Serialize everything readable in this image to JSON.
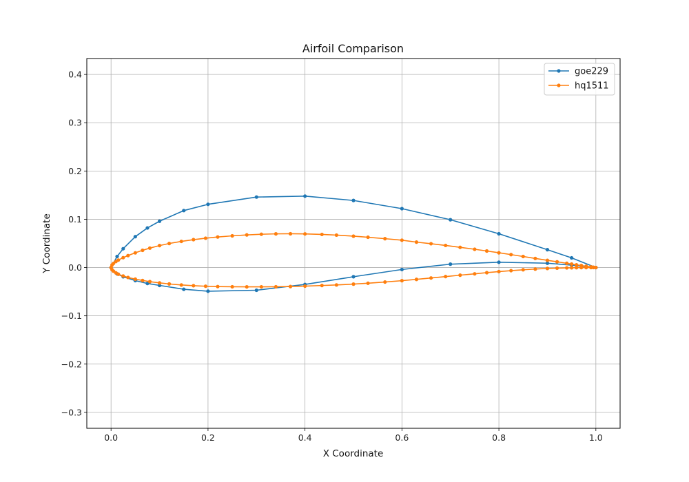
{
  "chart_data": {
    "type": "line",
    "title": "Airfoil Comparison",
    "xlabel": "X Coordinate",
    "ylabel": "Y Coordinate",
    "xlim": [
      -0.05,
      1.05
    ],
    "ylim": [
      -0.333,
      0.433
    ],
    "xticks": [
      0.0,
      0.2,
      0.4,
      0.6,
      0.8,
      1.0
    ],
    "xtick_labels": [
      "0.0",
      "0.2",
      "0.4",
      "0.6",
      "0.8",
      "1.0"
    ],
    "yticks": [
      -0.3,
      -0.2,
      -0.1,
      0.0,
      0.1,
      0.2,
      0.3,
      0.4
    ],
    "ytick_labels": [
      "−0.3",
      "−0.2",
      "−0.1",
      "0.0",
      "0.1",
      "0.2",
      "0.3",
      "0.4"
    ],
    "grid": true,
    "legend_position": "top-right",
    "series": [
      {
        "name": "goe229",
        "color": "#1f77b4",
        "x": [
          1.0,
          0.95,
          0.9,
          0.8,
          0.7,
          0.6,
          0.5,
          0.4,
          0.3,
          0.2,
          0.15,
          0.1,
          0.075,
          0.05,
          0.025,
          0.0125,
          0.0,
          0.0125,
          0.025,
          0.05,
          0.075,
          0.1,
          0.15,
          0.2,
          0.3,
          0.4,
          0.5,
          0.6,
          0.7,
          0.8,
          0.9,
          0.95,
          1.0
        ],
        "y": [
          0.0,
          0.02,
          0.037,
          0.07,
          0.099,
          0.122,
          0.139,
          0.148,
          0.146,
          0.131,
          0.118,
          0.096,
          0.082,
          0.064,
          0.039,
          0.023,
          0.0,
          -0.013,
          -0.019,
          -0.027,
          -0.033,
          -0.037,
          -0.045,
          -0.049,
          -0.047,
          -0.035,
          -0.019,
          -0.004,
          0.007,
          0.011,
          0.009,
          0.005,
          0.0
        ]
      },
      {
        "name": "hq1511",
        "color": "#ff7f0e",
        "x": [
          1.0,
          0.995,
          0.99,
          0.98,
          0.97,
          0.96,
          0.95,
          0.94,
          0.92,
          0.9,
          0.875,
          0.85,
          0.825,
          0.8,
          0.775,
          0.75,
          0.72,
          0.69,
          0.66,
          0.63,
          0.6,
          0.565,
          0.53,
          0.5,
          0.465,
          0.435,
          0.4,
          0.37,
          0.34,
          0.31,
          0.28,
          0.25,
          0.22,
          0.195,
          0.17,
          0.145,
          0.12,
          0.1,
          0.08,
          0.065,
          0.05,
          0.035,
          0.025,
          0.015,
          0.01,
          0.005,
          0.002,
          0.0,
          0.002,
          0.005,
          0.01,
          0.015,
          0.025,
          0.035,
          0.05,
          0.065,
          0.08,
          0.1,
          0.12,
          0.145,
          0.17,
          0.195,
          0.22,
          0.25,
          0.28,
          0.31,
          0.34,
          0.37,
          0.4,
          0.435,
          0.465,
          0.5,
          0.53,
          0.565,
          0.6,
          0.63,
          0.66,
          0.69,
          0.72,
          0.75,
          0.775,
          0.8,
          0.825,
          0.85,
          0.875,
          0.9,
          0.92,
          0.94,
          0.95,
          0.96,
          0.97,
          0.98,
          0.99,
          0.995,
          1.0
        ],
        "y": [
          0.0,
          0.0006,
          0.0013,
          0.0027,
          0.0042,
          0.0057,
          0.0073,
          0.0088,
          0.0119,
          0.015,
          0.0189,
          0.0229,
          0.0268,
          0.0306,
          0.0343,
          0.0379,
          0.0419,
          0.0458,
          0.0494,
          0.0527,
          0.0567,
          0.0598,
          0.0628,
          0.065,
          0.0672,
          0.0686,
          0.0697,
          0.07,
          0.0698,
          0.069,
          0.0676,
          0.0657,
          0.0633,
          0.0608,
          0.0578,
          0.0542,
          0.0498,
          0.0455,
          0.0403,
          0.0357,
          0.0305,
          0.0248,
          0.0205,
          0.0155,
          0.0125,
          0.0085,
          0.0052,
          0.0,
          -0.0045,
          -0.0075,
          -0.011,
          -0.0138,
          -0.0175,
          -0.0205,
          -0.024,
          -0.0268,
          -0.0292,
          -0.0318,
          -0.034,
          -0.0361,
          -0.0376,
          -0.0387,
          -0.0394,
          -0.0398,
          -0.04,
          -0.04,
          -0.0398,
          -0.0393,
          -0.0385,
          -0.0372,
          -0.036,
          -0.0343,
          -0.0325,
          -0.03,
          -0.0272,
          -0.0245,
          -0.0216,
          -0.0187,
          -0.0158,
          -0.013,
          -0.0106,
          -0.0084,
          -0.0064,
          -0.0046,
          -0.0031,
          -0.0019,
          -0.0012,
          -0.0007,
          -0.0005,
          -0.0003,
          -0.0002,
          -0.0001,
          -5e-05,
          -2e-05,
          0.0
        ]
      }
    ]
  }
}
